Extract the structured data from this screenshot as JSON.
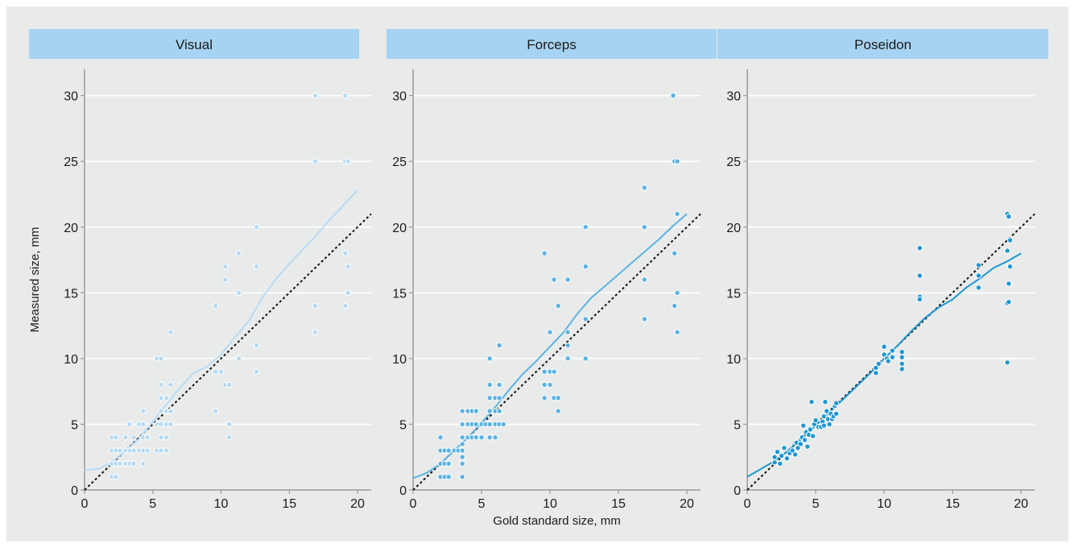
{
  "figure": {
    "colors": {
      "background": "#e9ebeb",
      "header": "#a6d3f2",
      "visual": "#b7daf4",
      "forceps": "#5cb2e2",
      "poseidon": "#1e96d2",
      "identity_line": "#111111",
      "grid": "#ffffff"
    }
  },
  "chart_data": [
    {
      "type": "scatter",
      "title": "Visual",
      "xlabel": "",
      "ylabel": "Measured size, mm",
      "xlim": [
        0,
        21
      ],
      "ylim": [
        0,
        32
      ],
      "xticks": [
        0,
        5,
        10,
        15,
        20
      ],
      "yticks": [
        0,
        5,
        10,
        15,
        20,
        25,
        30
      ],
      "grid": "horizontal",
      "reference_line": "y = x (dotted)",
      "points": [
        [
          2,
          1
        ],
        [
          2.3,
          1
        ],
        [
          2,
          2
        ],
        [
          2.3,
          2
        ],
        [
          2.6,
          2
        ],
        [
          3,
          2
        ],
        [
          3.3,
          2
        ],
        [
          3.6,
          2
        ],
        [
          4.3,
          2
        ],
        [
          2,
          3
        ],
        [
          2.3,
          3
        ],
        [
          2.6,
          3
        ],
        [
          3,
          3
        ],
        [
          3.3,
          3
        ],
        [
          3.6,
          3
        ],
        [
          4,
          3
        ],
        [
          4.3,
          3
        ],
        [
          4.6,
          3
        ],
        [
          5.3,
          3
        ],
        [
          5.6,
          3
        ],
        [
          6,
          3
        ],
        [
          2,
          4
        ],
        [
          2.3,
          4
        ],
        [
          3,
          4
        ],
        [
          3.6,
          4
        ],
        [
          4.3,
          4
        ],
        [
          4.6,
          4
        ],
        [
          5.6,
          4
        ],
        [
          6,
          4
        ],
        [
          3.3,
          5
        ],
        [
          4,
          5
        ],
        [
          4.3,
          5
        ],
        [
          5.3,
          5
        ],
        [
          5.6,
          5
        ],
        [
          6,
          5
        ],
        [
          6.3,
          5
        ],
        [
          4.3,
          6
        ],
        [
          5.6,
          6
        ],
        [
          6,
          6
        ],
        [
          6.3,
          6
        ],
        [
          5.6,
          7
        ],
        [
          6,
          7
        ],
        [
          5.6,
          8
        ],
        [
          6.3,
          8
        ],
        [
          5.3,
          10
        ],
        [
          5.6,
          10
        ],
        [
          6.3,
          12
        ],
        [
          9.6,
          6
        ],
        [
          9.6,
          9
        ],
        [
          10,
          9
        ],
        [
          10.3,
          8
        ],
        [
          10.6,
          8
        ],
        [
          10.6,
          5
        ],
        [
          10.6,
          4
        ],
        [
          9.6,
          14
        ],
        [
          10.3,
          16
        ],
        [
          10.3,
          17
        ],
        [
          11.3,
          15
        ],
        [
          11.3,
          18
        ],
        [
          11.3,
          10
        ],
        [
          12.6,
          20
        ],
        [
          12.6,
          17
        ],
        [
          12.6,
          11
        ],
        [
          12.6,
          9
        ],
        [
          16.9,
          30
        ],
        [
          16.9,
          25
        ],
        [
          16.9,
          14
        ],
        [
          16.9,
          12
        ],
        [
          19.1,
          30
        ],
        [
          19.1,
          25
        ],
        [
          19.3,
          25
        ],
        [
          19.1,
          18
        ],
        [
          19.3,
          17
        ],
        [
          19.3,
          15
        ],
        [
          19.1,
          14
        ]
      ],
      "smooth_curve": [
        [
          0,
          1.5
        ],
        [
          1,
          1.6
        ],
        [
          2,
          2.1
        ],
        [
          3,
          3
        ],
        [
          4,
          3.9
        ],
        [
          5,
          5.2
        ],
        [
          6,
          6.5
        ],
        [
          7,
          7.8
        ],
        [
          8,
          8.9
        ],
        [
          9,
          9.4
        ],
        [
          10,
          10.3
        ],
        [
          11,
          11.6
        ],
        [
          12,
          12.8
        ],
        [
          13,
          14.6
        ],
        [
          14,
          16
        ],
        [
          15,
          17.2
        ],
        [
          16,
          18.3
        ],
        [
          17,
          19.4
        ],
        [
          18,
          20.6
        ],
        [
          19,
          21.7
        ],
        [
          20,
          22.8
        ]
      ]
    },
    {
      "type": "scatter",
      "title": "Forceps",
      "xlabel": "Gold standard size, mm",
      "ylabel": "",
      "xlim": [
        0,
        21
      ],
      "ylim": [
        0,
        32
      ],
      "xticks": [
        0,
        5,
        10,
        15,
        20
      ],
      "yticks": [
        0,
        5,
        10,
        15,
        20,
        25,
        30
      ],
      "grid": "horizontal",
      "reference_line": "y = x (dotted)",
      "points": [
        [
          2,
          1
        ],
        [
          2.3,
          1
        ],
        [
          2.6,
          1
        ],
        [
          3.6,
          1
        ],
        [
          2,
          2
        ],
        [
          2.3,
          2
        ],
        [
          3.6,
          2
        ],
        [
          2.6,
          2
        ],
        [
          2,
          3
        ],
        [
          2.3,
          3
        ],
        [
          2.6,
          3
        ],
        [
          3,
          3
        ],
        [
          3.3,
          3
        ],
        [
          3.6,
          3
        ],
        [
          3.6,
          2.5
        ],
        [
          2,
          4
        ],
        [
          3.6,
          4
        ],
        [
          3.6,
          3.5
        ],
        [
          4,
          4
        ],
        [
          4.3,
          4
        ],
        [
          4.6,
          4
        ],
        [
          5,
          4
        ],
        [
          5.6,
          4
        ],
        [
          6,
          4
        ],
        [
          3.6,
          5
        ],
        [
          4,
          5
        ],
        [
          4.3,
          5
        ],
        [
          4.6,
          5
        ],
        [
          5,
          5
        ],
        [
          5.3,
          5
        ],
        [
          5.6,
          5
        ],
        [
          6,
          5
        ],
        [
          6.3,
          5
        ],
        [
          6.6,
          5
        ],
        [
          3.6,
          6
        ],
        [
          4,
          6
        ],
        [
          4.3,
          6
        ],
        [
          4.6,
          6
        ],
        [
          5.6,
          6
        ],
        [
          6,
          6
        ],
        [
          6.3,
          6
        ],
        [
          5.6,
          7
        ],
        [
          6,
          7
        ],
        [
          6.3,
          7
        ],
        [
          5.6,
          8
        ],
        [
          6.3,
          8
        ],
        [
          5.6,
          10
        ],
        [
          6.3,
          11
        ],
        [
          9.6,
          7
        ],
        [
          9.6,
          8
        ],
        [
          9.6,
          9
        ],
        [
          10,
          8
        ],
        [
          10,
          9
        ],
        [
          10.3,
          7
        ],
        [
          10.3,
          9
        ],
        [
          10.6,
          6
        ],
        [
          10.6,
          7
        ],
        [
          9.6,
          18
        ],
        [
          10,
          12
        ],
        [
          10.3,
          16
        ],
        [
          10.6,
          14
        ],
        [
          11.3,
          16
        ],
        [
          11.3,
          12
        ],
        [
          11.3,
          11
        ],
        [
          11.3,
          10
        ],
        [
          12.6,
          20
        ],
        [
          12.6,
          17
        ],
        [
          12.6,
          13
        ],
        [
          12.6,
          10
        ],
        [
          16.9,
          23
        ],
        [
          16.9,
          20
        ],
        [
          16.9,
          16
        ],
        [
          16.9,
          13
        ],
        [
          19,
          30
        ],
        [
          19.1,
          25
        ],
        [
          19.3,
          25
        ],
        [
          19.3,
          21
        ],
        [
          19.1,
          18
        ],
        [
          19.3,
          15
        ],
        [
          19.1,
          14
        ],
        [
          19.3,
          12
        ]
      ],
      "smooth_curve": [
        [
          0,
          0.9
        ],
        [
          1,
          1.3
        ],
        [
          2,
          2
        ],
        [
          3,
          3
        ],
        [
          4,
          4
        ],
        [
          5,
          5.1
        ],
        [
          6,
          6.3
        ],
        [
          7,
          7.6
        ],
        [
          8,
          8.8
        ],
        [
          9,
          9.8
        ],
        [
          10,
          10.9
        ],
        [
          11,
          12
        ],
        [
          12,
          13.4
        ],
        [
          13,
          14.6
        ],
        [
          14,
          15.5
        ],
        [
          15,
          16.4
        ],
        [
          16,
          17.3
        ],
        [
          17,
          18.2
        ],
        [
          18,
          19.1
        ],
        [
          19,
          20.1
        ],
        [
          20,
          21
        ]
      ]
    },
    {
      "type": "scatter",
      "title": "Poseidon",
      "xlabel": "",
      "ylabel": "",
      "xlim": [
        0,
        21
      ],
      "ylim": [
        0,
        32
      ],
      "xticks": [
        0,
        5,
        10,
        15,
        20
      ],
      "yticks": [
        0,
        5,
        10,
        15,
        20,
        25,
        30
      ],
      "grid": "horizontal",
      "reference_line": "y = x (dotted)",
      "points": [
        [
          2,
          2.1
        ],
        [
          2,
          2.5
        ],
        [
          2.2,
          2.9
        ],
        [
          2.4,
          2
        ],
        [
          2.5,
          2.6
        ],
        [
          2.7,
          3.2
        ],
        [
          2.9,
          2.4
        ],
        [
          3.1,
          2.8
        ],
        [
          3.3,
          3
        ],
        [
          3.5,
          2.7
        ],
        [
          3.6,
          3.6
        ],
        [
          3.7,
          3.2
        ],
        [
          3.9,
          3.5
        ],
        [
          4,
          4
        ],
        [
          4.1,
          4.9
        ],
        [
          4.2,
          3.8
        ],
        [
          4.3,
          4.4
        ],
        [
          4.4,
          3.3
        ],
        [
          4.5,
          4.2
        ],
        [
          4.6,
          4.6
        ],
        [
          4.7,
          6.7
        ],
        [
          4.8,
          4.1
        ],
        [
          4.9,
          5
        ],
        [
          5,
          5.3
        ],
        [
          5.2,
          4.8
        ],
        [
          5.4,
          4.8
        ],
        [
          5.5,
          5.2
        ],
        [
          5.6,
          5.6
        ],
        [
          5.6,
          4.9
        ],
        [
          5.7,
          6.7
        ],
        [
          5.8,
          6
        ],
        [
          5.9,
          5.4
        ],
        [
          6,
          5
        ],
        [
          6.1,
          5.8
        ],
        [
          6.2,
          5.4
        ],
        [
          6.3,
          5.6
        ],
        [
          6.4,
          6.4
        ],
        [
          6.5,
          6.6
        ],
        [
          6.5,
          5.8
        ],
        [
          9.4,
          8.9
        ],
        [
          9.4,
          9.3
        ],
        [
          9.6,
          9.6
        ],
        [
          10,
          10.3
        ],
        [
          10,
          10.9
        ],
        [
          10.2,
          10
        ],
        [
          10.3,
          9.8
        ],
        [
          10.6,
          10.6
        ],
        [
          10.6,
          10.1
        ],
        [
          11.3,
          9.2
        ],
        [
          11.3,
          9.6
        ],
        [
          11.3,
          10.1
        ],
        [
          11.3,
          10.5
        ],
        [
          12.6,
          14.7
        ],
        [
          12.6,
          14.5
        ],
        [
          12.6,
          16.3
        ],
        [
          12.6,
          18.4
        ],
        [
          16.9,
          17.1
        ],
        [
          16.9,
          16.3
        ],
        [
          16.9,
          15.4
        ],
        [
          19,
          21
        ],
        [
          19.1,
          20.8
        ],
        [
          19.2,
          19
        ],
        [
          19,
          18.2
        ],
        [
          19.2,
          17
        ],
        [
          19.1,
          15.7
        ],
        [
          19,
          14.2
        ],
        [
          19.1,
          14.3
        ],
        [
          19,
          9.7
        ]
      ],
      "smooth_curve": [
        [
          0,
          1
        ],
        [
          1,
          1.6
        ],
        [
          2,
          2.2
        ],
        [
          3,
          3
        ],
        [
          4,
          3.9
        ],
        [
          5,
          4.9
        ],
        [
          6,
          5.9
        ],
        [
          7,
          6.9
        ],
        [
          8,
          7.9
        ],
        [
          9,
          8.9
        ],
        [
          10,
          10
        ],
        [
          11,
          11
        ],
        [
          12,
          12.1
        ],
        [
          13,
          13.1
        ],
        [
          14,
          13.9
        ],
        [
          15,
          14.5
        ],
        [
          16,
          15.4
        ],
        [
          17,
          16.1
        ],
        [
          18,
          16.9
        ],
        [
          19,
          17.4
        ],
        [
          20,
          18
        ]
      ]
    }
  ]
}
